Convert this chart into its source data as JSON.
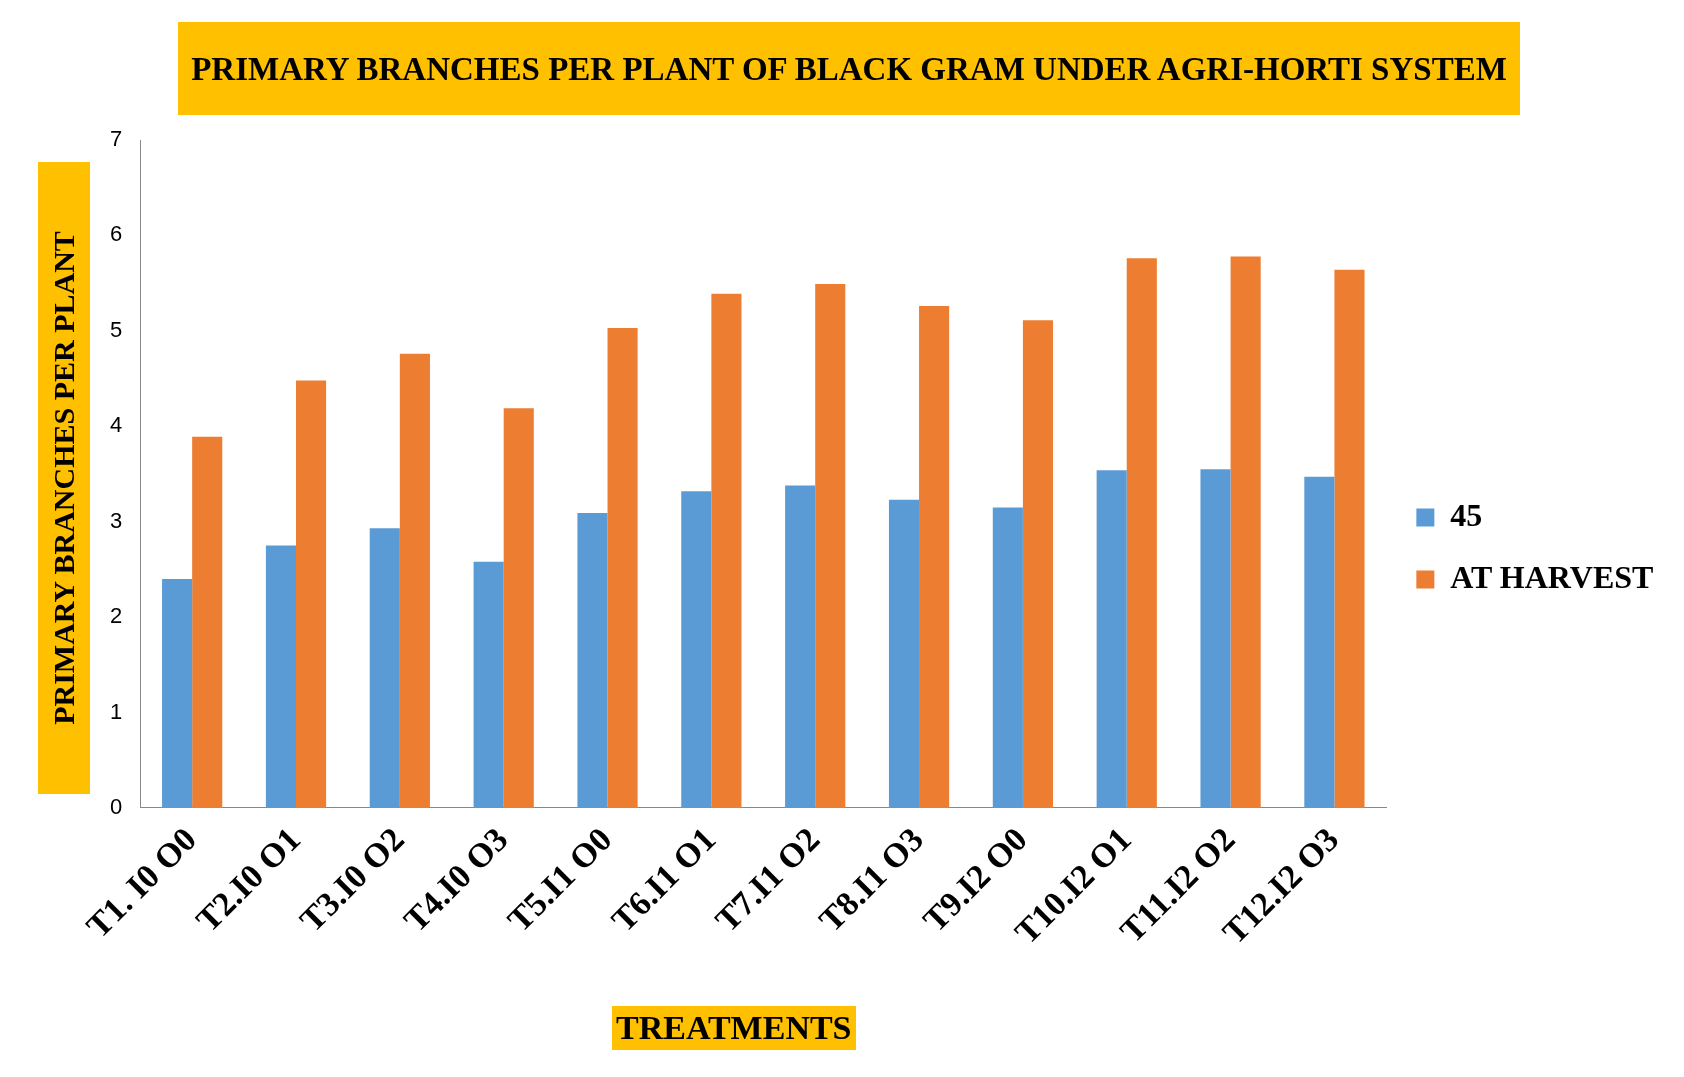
{
  "chart_data": {
    "type": "bar",
    "title": "PRIMARY BRANCHES PER PLANT OF BLACK GRAM UNDER AGRI-HORTI SYSTEM",
    "xlabel": "TREATMENTS",
    "ylabel": "PRIMARY BRANCHES PER PLANT",
    "categories": [
      "T1. I0 O0",
      "T2.I0 O1",
      "T3.I0 O2",
      "T4.I0 O3",
      "T5.I1 O0",
      "T6.I1 O1",
      "T7.I1 O2",
      "T8.I1 O3",
      "T9.I2 O0",
      "T10.I2 O1",
      "T11.I2 O2",
      "T12.I2 O3"
    ],
    "series": [
      {
        "name": "45",
        "color": "#5b9bd5",
        "values": [
          2.4,
          2.75,
          2.93,
          2.58,
          3.09,
          3.32,
          3.38,
          3.23,
          3.15,
          3.54,
          3.55,
          3.47
        ]
      },
      {
        "name": "AT HARVEST",
        "color": "#ed7d31",
        "values": [
          3.89,
          4.48,
          4.76,
          4.19,
          5.03,
          5.39,
          5.49,
          5.26,
          5.11,
          5.76,
          5.78,
          5.64
        ]
      }
    ],
    "ylim": [
      0,
      7
    ],
    "yticks": [
      0,
      1,
      2,
      3,
      4,
      5,
      6,
      7
    ],
    "grid": false,
    "legend": "right"
  }
}
